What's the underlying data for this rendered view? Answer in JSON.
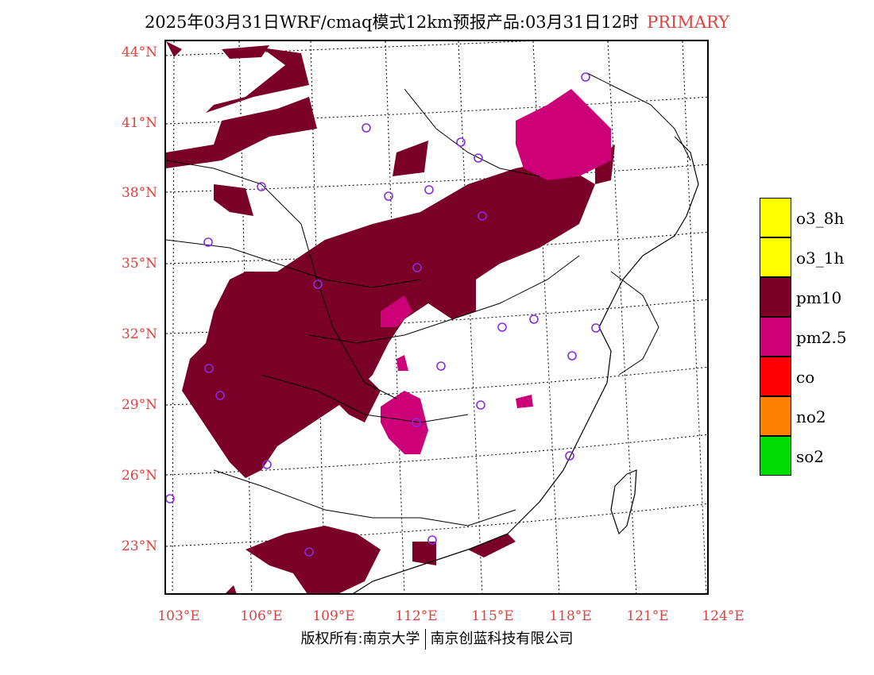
{
  "title": {
    "text": "2025年03月31日WRF/cmaq模式12km预报产品:03月31日12时",
    "tag": "PRIMARY"
  },
  "colors": {
    "pm10": "#7a0028",
    "pm25": "#cc0077",
    "label_red": "#e04040",
    "station": "#8a2be2"
  },
  "axes": {
    "lat_labels": [
      "44°N",
      "41°N",
      "38°N",
      "35°N",
      "32°N",
      "29°N",
      "26°N",
      "23°N"
    ],
    "lon_labels": [
      "103°E",
      "106°E",
      "109°E",
      "112°E",
      "115°E",
      "118°E",
      "121°E",
      "124°E"
    ]
  },
  "legend": {
    "items": [
      {
        "label": "o3_8h",
        "color": "#ffff00"
      },
      {
        "label": "o3_1h",
        "color": "#ffff00"
      },
      {
        "label": "pm10",
        "color": "#7a0028"
      },
      {
        "label": "pm2.5",
        "color": "#cc0077"
      },
      {
        "label": "co",
        "color": "#ff0000"
      },
      {
        "label": "no2",
        "color": "#ff7f00"
      },
      {
        "label": "so2",
        "color": "#00dd00"
      }
    ]
  },
  "footer": {
    "left": "版权所有:南京大学",
    "right": "南京创蓝科技有限公司"
  }
}
